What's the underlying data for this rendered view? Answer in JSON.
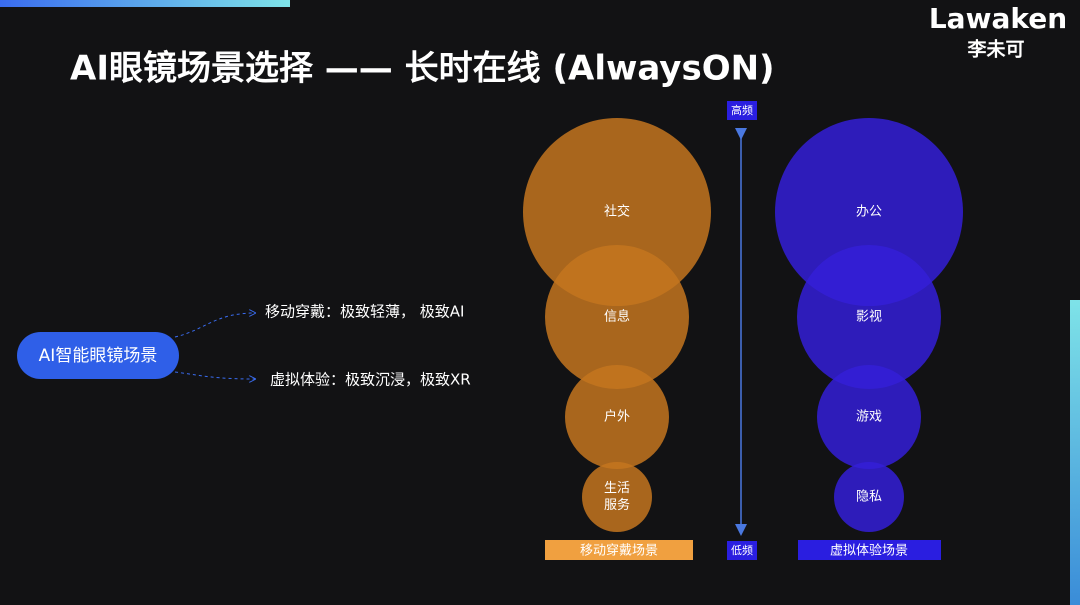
{
  "header": {
    "title": "AI眼镜场景选择 —— 长时在线 (AlwaysON)",
    "logo": "Lawaken",
    "logo_subtitle": "李未可"
  },
  "left": {
    "root": "AI智能眼镜场景",
    "branches": [
      "移动穿戴：极致轻薄， 极致AI",
      "虚拟体验：极致沉浸，极致XR"
    ]
  },
  "axis": {
    "top": "高频",
    "bottom": "低频"
  },
  "columns": [
    {
      "label": "移动穿戴场景",
      "bubbles": [
        {
          "lines": [
            "社交"
          ]
        },
        {
          "lines": [
            "信息"
          ]
        },
        {
          "lines": [
            "户外"
          ]
        },
        {
          "lines": [
            "生活",
            "服务"
          ]
        }
      ]
    },
    {
      "label": "虚拟体验场景",
      "bubbles": [
        {
          "lines": [
            "办公"
          ]
        },
        {
          "lines": [
            "影视"
          ]
        },
        {
          "lines": [
            "游戏"
          ]
        },
        {
          "lines": [
            "隐私"
          ]
        }
      ]
    }
  ]
}
